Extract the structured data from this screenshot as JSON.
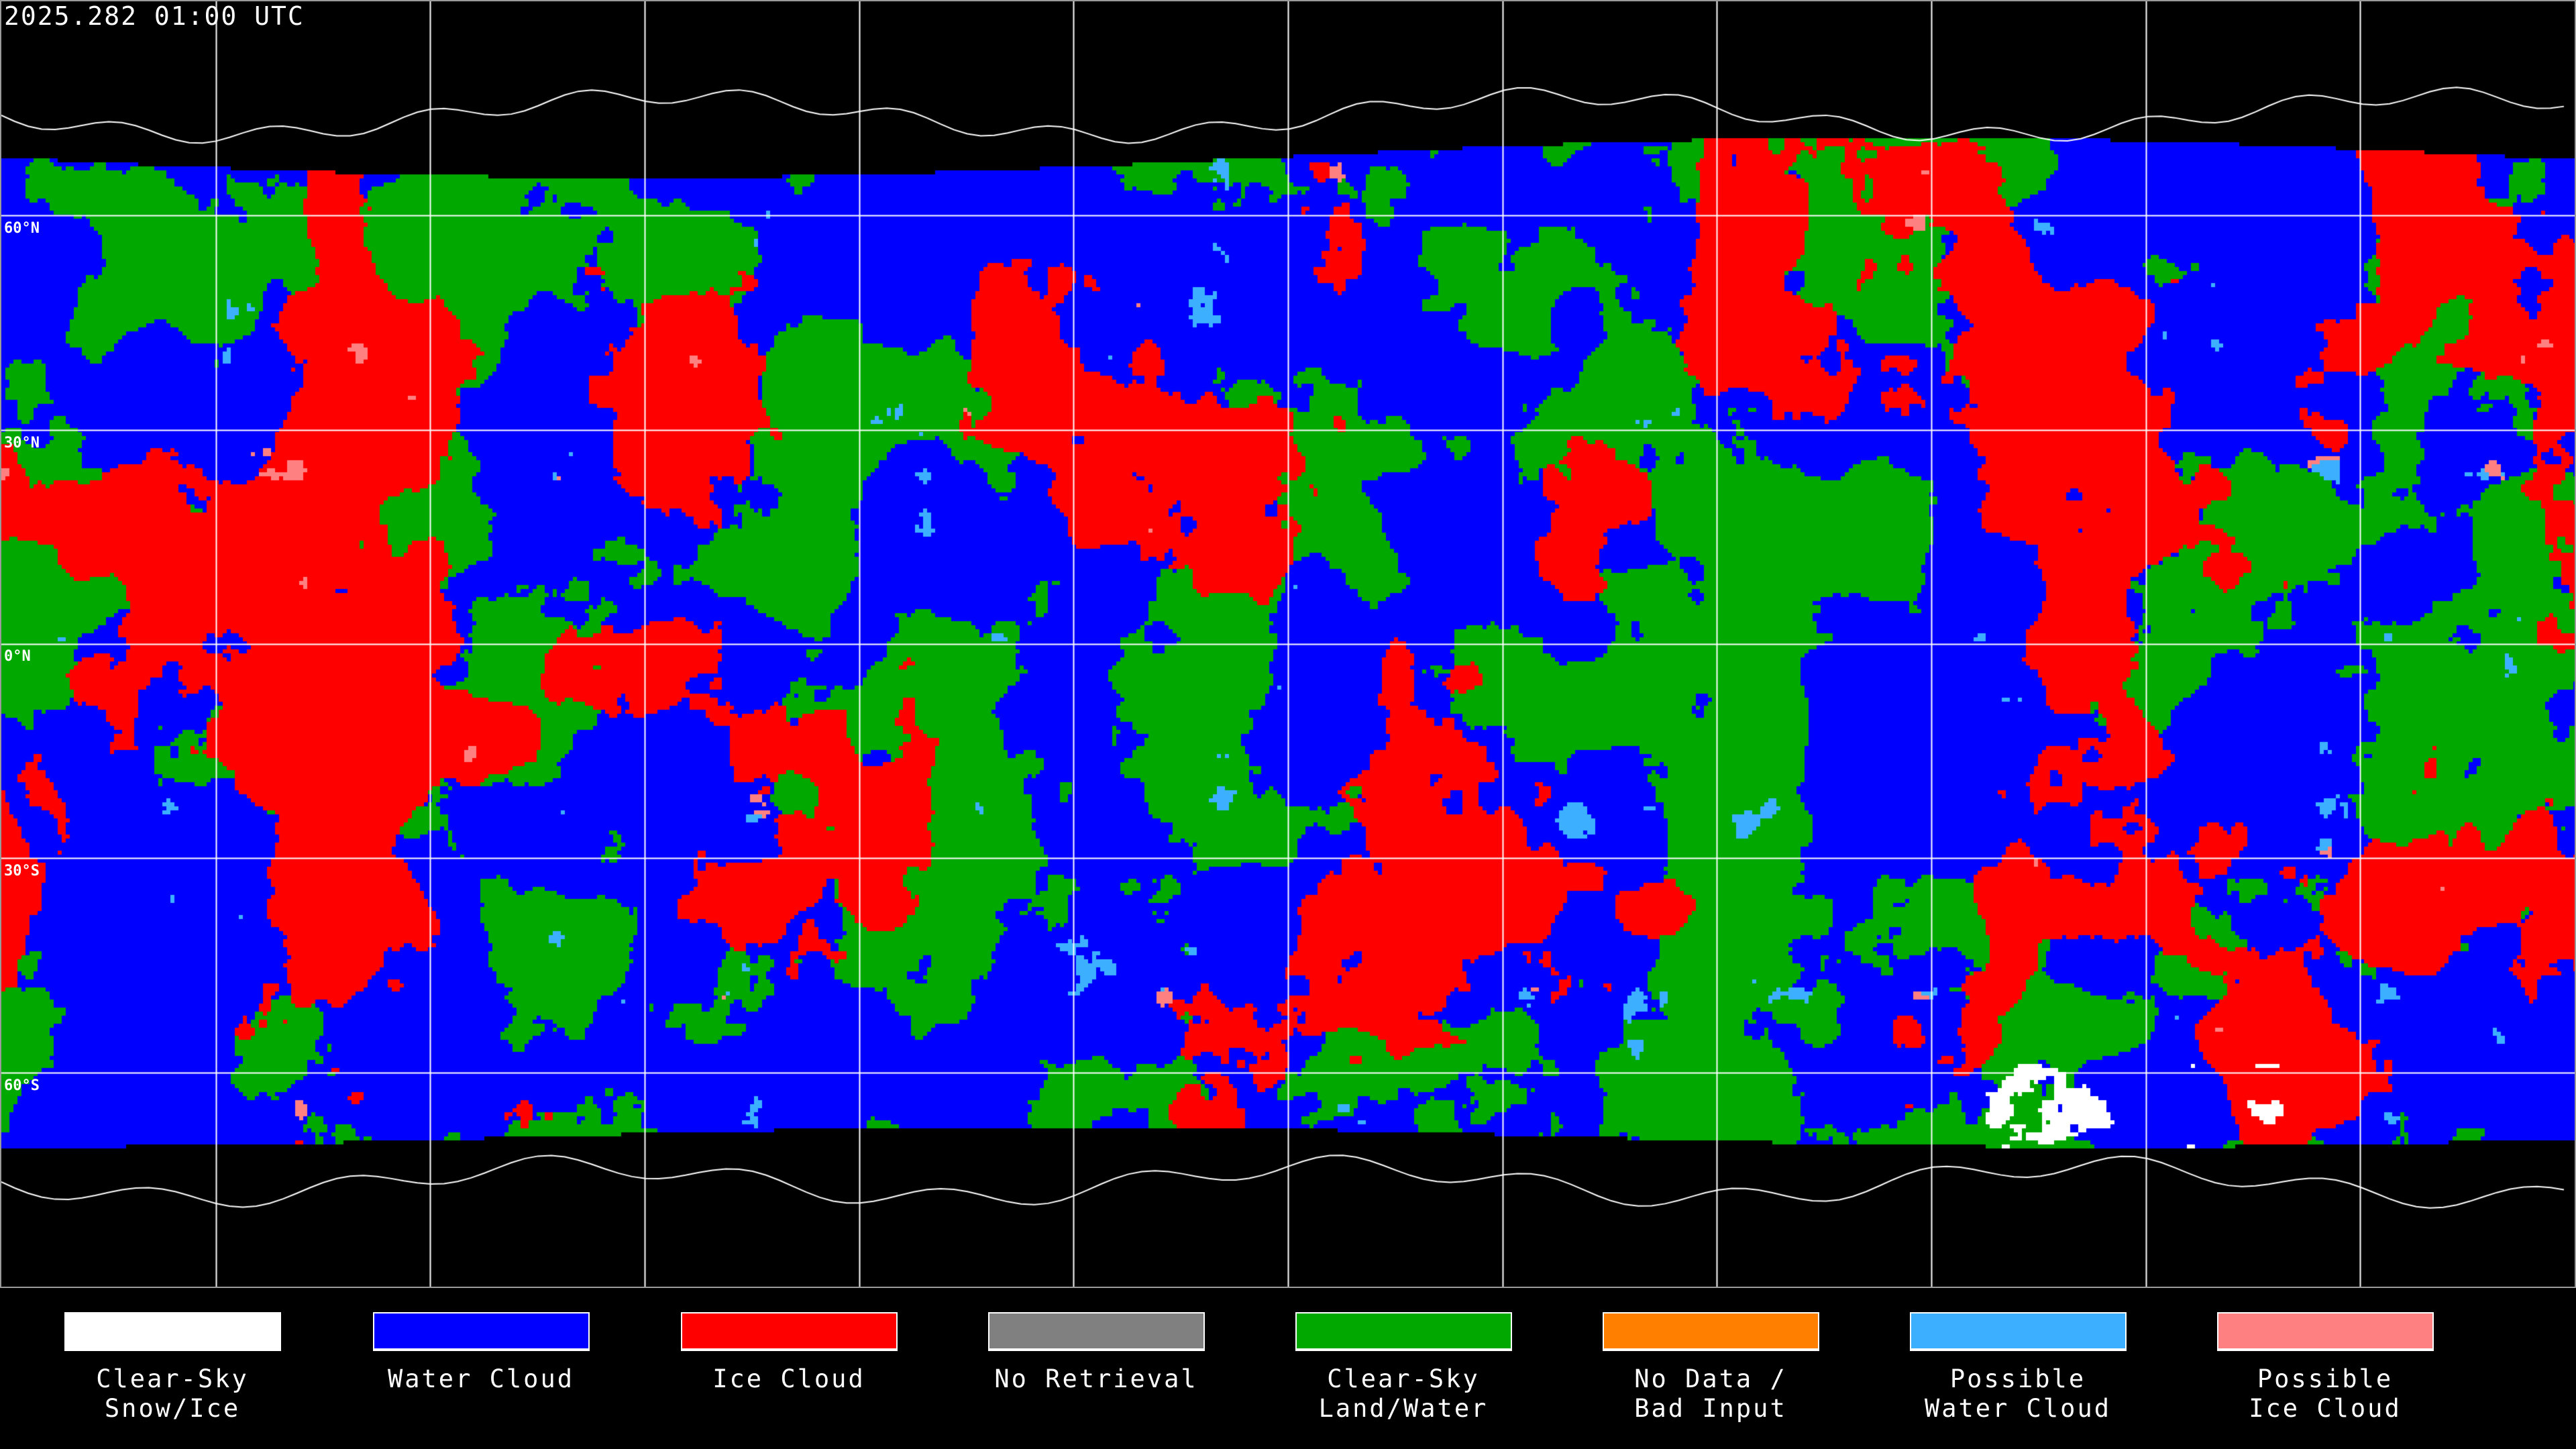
{
  "header": {
    "timestamp": "2025.282 01:00 UTC"
  },
  "map": {
    "projection": "equirectangular",
    "lat_labels": [
      "60°N",
      "30°N",
      "0°N",
      "30°S",
      "60°S"
    ],
    "gridlines": true,
    "coastlines": true
  },
  "legend": {
    "items": [
      {
        "label": "Clear-Sky\nSnow/Ice",
        "color": "#ffffff"
      },
      {
        "label": "Water Cloud",
        "color": "#0000ff"
      },
      {
        "label": "Ice Cloud",
        "color": "#ff0000"
      },
      {
        "label": "No Retrieval",
        "color": "#808080"
      },
      {
        "label": "Clear-Sky\nLand/Water",
        "color": "#00a800"
      },
      {
        "label": "No Data /\nBad Input",
        "color": "#ff8000"
      },
      {
        "label": "Possible\nWater Cloud",
        "color": "#3cb0ff"
      },
      {
        "label": "Possible\nIce Cloud",
        "color": "#ff8080"
      }
    ]
  }
}
